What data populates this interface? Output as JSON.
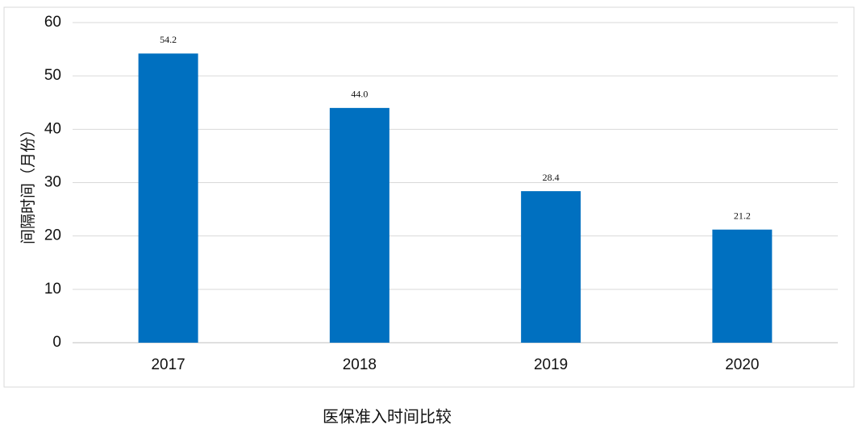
{
  "chart_data": {
    "type": "bar",
    "title": "医保准入时间比较",
    "y_label": "间隔时间（月份）",
    "categories": [
      "2017",
      "2018",
      "2019",
      "2020"
    ],
    "values": [
      54.2,
      44.0,
      28.4,
      21.2
    ],
    "value_labels": [
      "54.2",
      "44.0",
      "28.4",
      "21.2"
    ],
    "color": "#0070c0",
    "ylim": [
      0,
      60
    ],
    "yticks": [
      0,
      10,
      20,
      30,
      40,
      50,
      60
    ],
    "grid": true
  }
}
